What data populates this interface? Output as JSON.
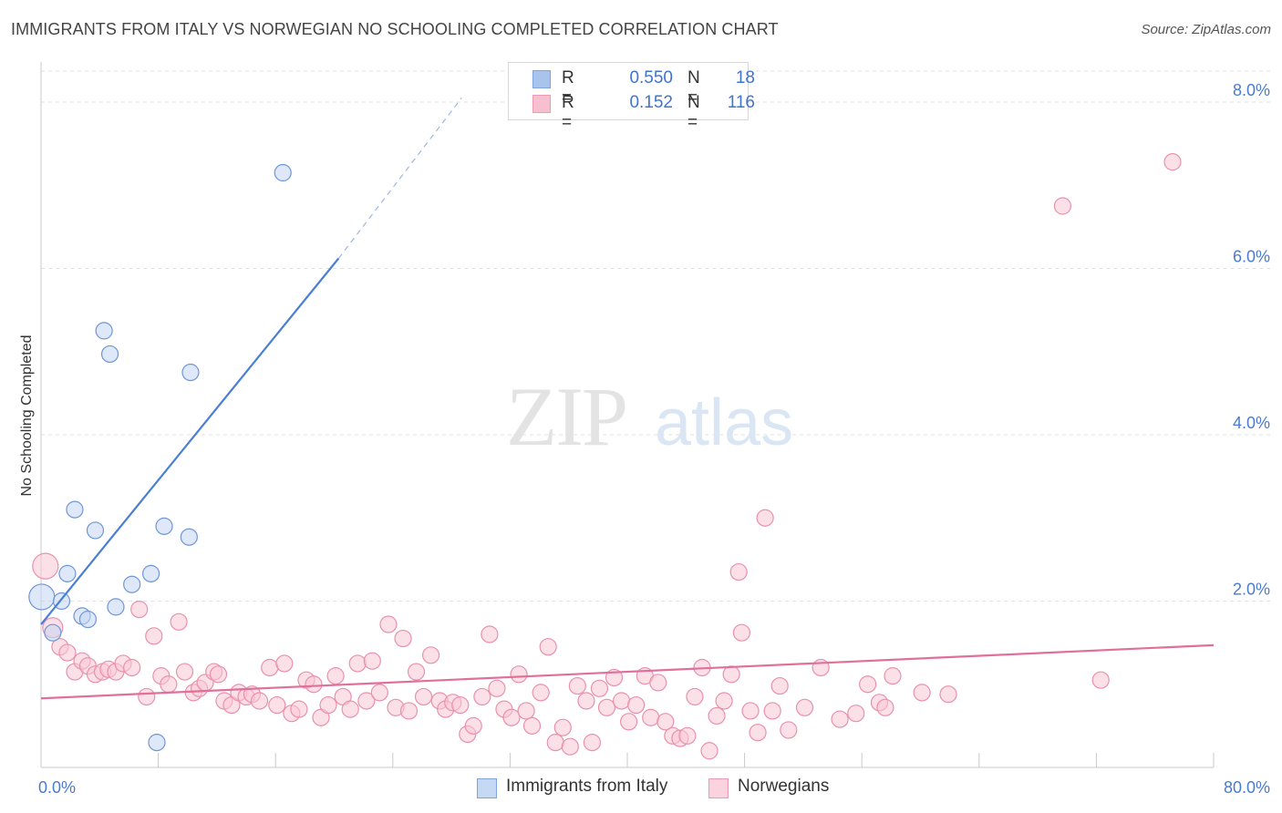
{
  "title": "IMMIGRANTS FROM ITALY VS NORWEGIAN NO SCHOOLING COMPLETED CORRELATION CHART",
  "source": "Source: ZipAtlas.com",
  "watermark": {
    "zip": "ZIP",
    "atlas": "atlas"
  },
  "legend": {
    "rows": [
      {
        "r_label": "R =",
        "r_value": "0.550",
        "n_label": "N =",
        "n_value": "18",
        "color": "#a8c4ec",
        "border": "#7fa3dc"
      },
      {
        "r_label": "R =",
        "r_value": "0.152",
        "n_label": "N =",
        "n_value": "116",
        "color": "#f7bfd0",
        "border": "#eb9ab3"
      }
    ]
  },
  "bottom_legend": [
    {
      "label": "Immigrants from Italy",
      "color": "#c6d9f4",
      "border": "#7fa3dc"
    },
    {
      "label": "Norwegians",
      "color": "#fbd3df",
      "border": "#eb9ab3"
    }
  ],
  "chart_data": {
    "type": "scatter",
    "title": "IMMIGRANTS FROM ITALY VS NORWEGIAN NO SCHOOLING COMPLETED CORRELATION CHART",
    "xlabel": "",
    "ylabel": "No Schooling Completed",
    "xlim": [
      0,
      80
    ],
    "ylim": [
      0,
      8.35
    ],
    "x_tick_labels": [
      "0.0%",
      "80.0%"
    ],
    "y_ticks": [
      2,
      4,
      6,
      8
    ],
    "y_tick_labels": [
      "2.0%",
      "4.0%",
      "6.0%",
      "8.0%"
    ],
    "colors": {
      "italy": "#4a7fd4",
      "norwegians": "#e0709a"
    },
    "series": [
      {
        "name": "Immigrants from Italy",
        "r": 0.55,
        "n": 18,
        "points": [
          [
            0.05,
            2.05,
            14
          ],
          [
            0.8,
            1.62,
            9
          ],
          [
            1.4,
            2.0,
            9
          ],
          [
            1.8,
            2.33,
            9
          ],
          [
            2.3,
            3.1,
            9
          ],
          [
            2.8,
            1.82,
            9
          ],
          [
            3.2,
            1.78,
            9
          ],
          [
            3.7,
            2.85,
            9
          ],
          [
            4.3,
            5.25,
            9
          ],
          [
            4.7,
            4.97,
            9
          ],
          [
            5.1,
            1.93,
            9
          ],
          [
            6.2,
            2.2,
            9
          ],
          [
            7.5,
            2.33,
            9
          ],
          [
            7.9,
            0.3,
            9
          ],
          [
            8.4,
            2.9,
            9
          ],
          [
            10.1,
            2.77,
            9
          ],
          [
            10.2,
            4.75,
            9
          ],
          [
            16.5,
            7.15,
            9
          ]
        ],
        "trend": {
          "x0": 0,
          "y0": 1.72,
          "x1": 20.3,
          "y1": 6.12,
          "dash_x1": 28.7,
          "dash_y1": 8.05
        }
      },
      {
        "name": "Norwegians",
        "r": 0.152,
        "n": 116,
        "points": [
          [
            0.3,
            2.42,
            14
          ],
          [
            0.8,
            1.68,
            11
          ],
          [
            1.3,
            1.45,
            9
          ],
          [
            1.8,
            1.38,
            9
          ],
          [
            2.3,
            1.15,
            9
          ],
          [
            2.8,
            1.28,
            9
          ],
          [
            3.2,
            1.22,
            9
          ],
          [
            3.7,
            1.12,
            9
          ],
          [
            4.2,
            1.15,
            9
          ],
          [
            4.6,
            1.18,
            9
          ],
          [
            5.1,
            1.15,
            9
          ],
          [
            5.6,
            1.25,
            9
          ],
          [
            6.2,
            1.2,
            9
          ],
          [
            6.7,
            1.9,
            9
          ],
          [
            7.2,
            0.85,
            9
          ],
          [
            7.7,
            1.58,
            9
          ],
          [
            8.2,
            1.1,
            9
          ],
          [
            8.7,
            1.0,
            9
          ],
          [
            9.4,
            1.75,
            9
          ],
          [
            9.8,
            1.15,
            9
          ],
          [
            10.4,
            0.9,
            9
          ],
          [
            10.8,
            0.95,
            9
          ],
          [
            11.2,
            1.02,
            9
          ],
          [
            11.8,
            1.15,
            9
          ],
          [
            12.1,
            1.12,
            9
          ],
          [
            12.5,
            0.8,
            9
          ],
          [
            13.0,
            0.75,
            9
          ],
          [
            13.5,
            0.9,
            9
          ],
          [
            14.0,
            0.85,
            9
          ],
          [
            14.4,
            0.88,
            9
          ],
          [
            14.9,
            0.8,
            9
          ],
          [
            15.6,
            1.2,
            9
          ],
          [
            16.1,
            0.75,
            9
          ],
          [
            16.6,
            1.25,
            9
          ],
          [
            17.1,
            0.65,
            9
          ],
          [
            17.6,
            0.7,
            9
          ],
          [
            18.1,
            1.05,
            9
          ],
          [
            18.6,
            1.0,
            9
          ],
          [
            19.1,
            0.6,
            9
          ],
          [
            19.6,
            0.75,
            9
          ],
          [
            20.1,
            1.1,
            9
          ],
          [
            20.6,
            0.85,
            9
          ],
          [
            21.1,
            0.7,
            9
          ],
          [
            21.6,
            1.25,
            9
          ],
          [
            22.2,
            0.8,
            9
          ],
          [
            22.6,
            1.28,
            9
          ],
          [
            23.1,
            0.9,
            9
          ],
          [
            23.7,
            1.72,
            9
          ],
          [
            24.2,
            0.72,
            9
          ],
          [
            24.7,
            1.55,
            9
          ],
          [
            25.1,
            0.68,
            9
          ],
          [
            25.6,
            1.15,
            9
          ],
          [
            26.1,
            0.85,
            9
          ],
          [
            26.6,
            1.35,
            9
          ],
          [
            27.2,
            0.8,
            9
          ],
          [
            27.6,
            0.7,
            9
          ],
          [
            28.1,
            0.78,
            9
          ],
          [
            28.6,
            0.75,
            9
          ],
          [
            29.1,
            0.4,
            9
          ],
          [
            29.5,
            0.5,
            9
          ],
          [
            30.1,
            0.85,
            9
          ],
          [
            30.6,
            1.6,
            9
          ],
          [
            31.1,
            0.95,
            9
          ],
          [
            31.6,
            0.7,
            9
          ],
          [
            32.1,
            0.6,
            9
          ],
          [
            32.6,
            1.12,
            9
          ],
          [
            33.1,
            0.68,
            9
          ],
          [
            33.5,
            0.5,
            9
          ],
          [
            34.1,
            0.9,
            9
          ],
          [
            34.6,
            1.45,
            9
          ],
          [
            35.1,
            0.3,
            9
          ],
          [
            35.6,
            0.48,
            9
          ],
          [
            36.1,
            0.25,
            9
          ],
          [
            36.6,
            0.98,
            9
          ],
          [
            37.2,
            0.8,
            9
          ],
          [
            37.6,
            0.3,
            9
          ],
          [
            38.1,
            0.95,
            9
          ],
          [
            38.6,
            0.72,
            9
          ],
          [
            39.1,
            1.08,
            9
          ],
          [
            39.6,
            0.8,
            9
          ],
          [
            40.1,
            0.55,
            9
          ],
          [
            40.6,
            0.75,
            9
          ],
          [
            41.2,
            1.1,
            9
          ],
          [
            41.6,
            0.6,
            9
          ],
          [
            42.1,
            1.02,
            9
          ],
          [
            42.6,
            0.55,
            9
          ],
          [
            43.1,
            0.38,
            9
          ],
          [
            43.6,
            0.35,
            9
          ],
          [
            44.1,
            0.38,
            9
          ],
          [
            44.6,
            0.85,
            9
          ],
          [
            45.1,
            1.2,
            9
          ],
          [
            45.6,
            0.2,
            9
          ],
          [
            46.1,
            0.62,
            9
          ],
          [
            46.6,
            0.8,
            9
          ],
          [
            47.1,
            1.12,
            9
          ],
          [
            47.6,
            2.35,
            9
          ],
          [
            47.8,
            1.62,
            9
          ],
          [
            48.4,
            0.68,
            9
          ],
          [
            48.9,
            0.42,
            9
          ],
          [
            49.4,
            3.0,
            9
          ],
          [
            49.9,
            0.68,
            9
          ],
          [
            50.4,
            0.98,
            9
          ],
          [
            51.0,
            0.45,
            9
          ],
          [
            52.1,
            0.72,
            9
          ],
          [
            53.2,
            1.2,
            9
          ],
          [
            54.5,
            0.58,
            9
          ],
          [
            55.6,
            0.65,
            9
          ],
          [
            56.4,
            1.0,
            9
          ],
          [
            57.2,
            0.78,
            9
          ],
          [
            57.6,
            0.72,
            9
          ],
          [
            58.1,
            1.1,
            9
          ],
          [
            60.1,
            0.9,
            9
          ],
          [
            61.9,
            0.88,
            9
          ],
          [
            72.3,
            1.05,
            9
          ],
          [
            69.7,
            6.75,
            9
          ],
          [
            77.2,
            7.28,
            9
          ]
        ],
        "trend": {
          "x0": 0,
          "y0": 0.83,
          "x1": 80,
          "y1": 1.47
        }
      }
    ]
  }
}
